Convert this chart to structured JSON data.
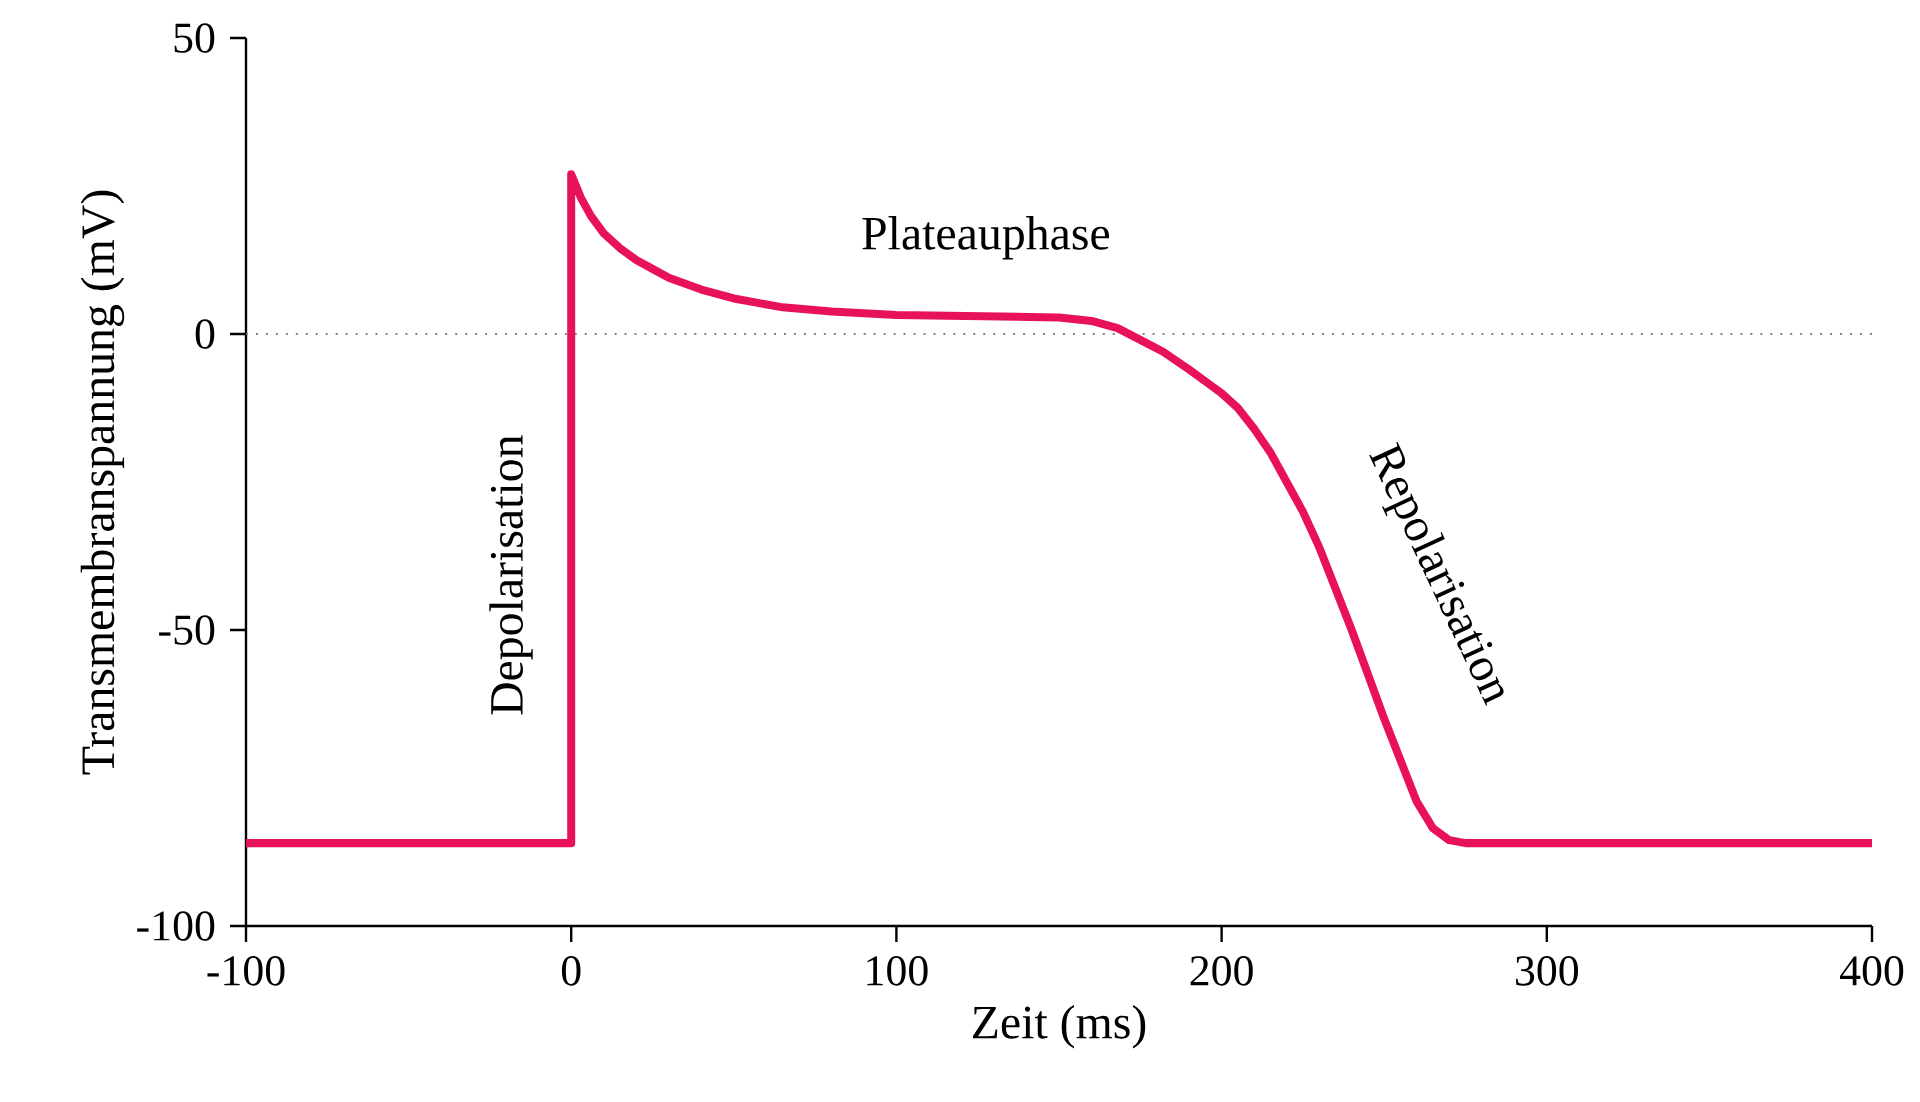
{
  "chart_data": {
    "type": "line",
    "xlabel": "Zeit (ms)",
    "ylabel": "Transmembranspannung (mV)",
    "xlim": [
      -100,
      400
    ],
    "ylim": [
      -100,
      50
    ],
    "xticks": [
      -100,
      0,
      100,
      200,
      300,
      400
    ],
    "yticks": [
      -100,
      -50,
      0,
      50
    ],
    "grid": false,
    "marker": "none",
    "line_style": "solid",
    "ref_lines": [
      {
        "axis": "y",
        "value": 0,
        "color": "#808080",
        "line_style": "dotted"
      }
    ],
    "annotations": [
      "Plateauphase",
      "Depolarisation",
      "Repolarisation"
    ],
    "series": [
      {
        "color": "#e8125c",
        "x": [
          -100,
          0,
          0,
          3,
          6,
          10,
          15,
          20,
          25,
          30,
          40,
          50,
          65,
          80,
          100,
          125,
          150,
          160,
          168,
          175,
          182,
          190,
          195,
          200,
          205,
          210,
          215,
          220,
          225,
          230,
          235,
          240,
          245,
          250,
          255,
          260,
          265,
          270,
          275,
          300,
          400
        ],
        "values": [
          -86,
          -86,
          27,
          23,
          20,
          17,
          14.5,
          12.5,
          11,
          9.5,
          7.5,
          6,
          4.5,
          3.8,
          3.2,
          3,
          2.8,
          2.2,
          1,
          -1,
          -3,
          -6,
          -8,
          -10,
          -12.5,
          -16,
          -20,
          -25,
          -30,
          -36,
          -43,
          -50,
          -57.5,
          -65,
          -72,
          -79,
          -83.5,
          -85.5,
          -86,
          -86,
          -86
        ]
      }
    ]
  }
}
